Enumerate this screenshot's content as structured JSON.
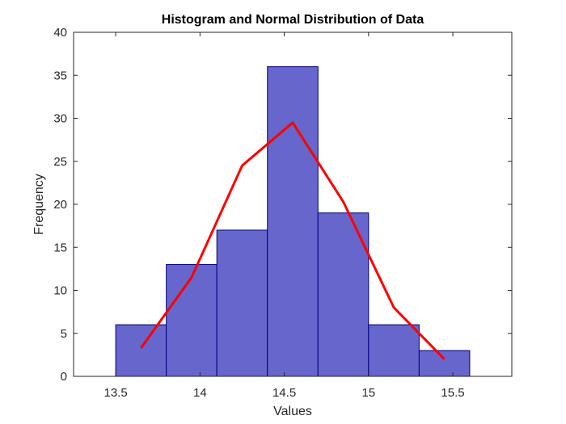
{
  "chart_data": {
    "type": "bar",
    "title": "Histogram and Normal Distribution of Data",
    "xlabel": "Values",
    "ylabel": "Frequency",
    "xlim": [
      13.25,
      15.85
    ],
    "ylim": [
      0,
      40
    ],
    "xticks": [
      13.5,
      14,
      14.5,
      15,
      15.5
    ],
    "xtick_labels": [
      "13.5",
      "14",
      "14.5",
      "15",
      "15.5"
    ],
    "yticks": [
      0,
      5,
      10,
      15,
      20,
      25,
      30,
      35,
      40
    ],
    "ytick_labels": [
      "0",
      "5",
      "10",
      "15",
      "20",
      "25",
      "30",
      "35",
      "40"
    ],
    "grid": false,
    "bins": {
      "edges": [
        13.5,
        13.8,
        14.1,
        14.4,
        14.7,
        15.0,
        15.3,
        15.6
      ],
      "counts": [
        6,
        13,
        17,
        36,
        19,
        6,
        3
      ],
      "fill_color": "#6666cc",
      "edge_color": "#00007f"
    },
    "curve": {
      "x": [
        13.65,
        13.95,
        14.25,
        14.55,
        14.85,
        15.15,
        15.45
      ],
      "y": [
        3.3,
        11.5,
        24.5,
        29.5,
        20.3,
        8.0,
        2.0
      ],
      "color": "#ff0000"
    }
  }
}
